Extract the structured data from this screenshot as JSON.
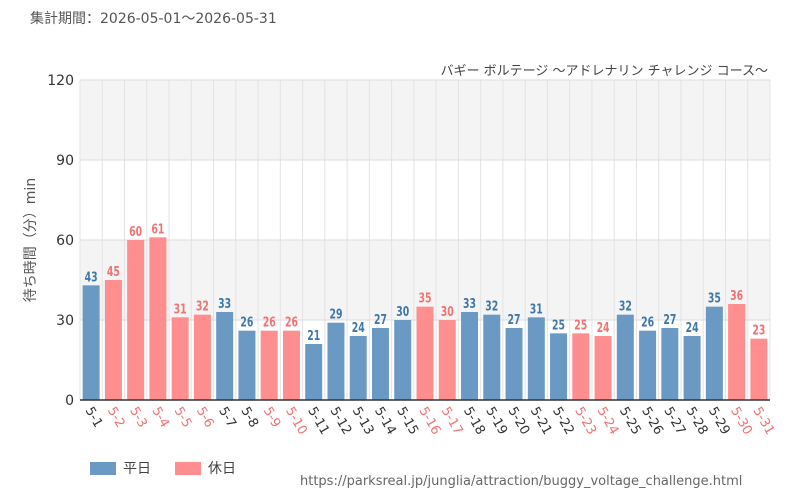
{
  "period_text": "集計期間：2026-05-01～2026-05-31",
  "url_text": "https://parksreal.jp/junglia/attraction/buggy_voltage_challenge.html",
  "colors": {
    "weekday": "#6a9ac4",
    "holiday": "#ff8e8e",
    "weekday_label": "#3f78a8",
    "holiday_label": "#f17272",
    "band": "#f4f4f4",
    "grid": "#e3e3e3"
  },
  "legend": [
    {
      "key": "weekday",
      "label": "平日"
    },
    {
      "key": "holiday",
      "label": "休日"
    }
  ],
  "chart_data": {
    "type": "bar",
    "title": "バギー ボルテージ ～アドレナリン チャレンジ コース～",
    "ylabel": "待ち時間（分）min",
    "xlabel": "",
    "ylim": [
      0,
      120
    ],
    "yticks": [
      0,
      30,
      60,
      90,
      120
    ],
    "grid": true,
    "legend_position": "bottom-left",
    "categories": [
      "5-1",
      "5-2",
      "5-3",
      "5-4",
      "5-5",
      "5-6",
      "5-7",
      "5-8",
      "5-9",
      "5-10",
      "5-11",
      "5-12",
      "5-13",
      "5-14",
      "5-15",
      "5-16",
      "5-17",
      "5-18",
      "5-19",
      "5-20",
      "5-21",
      "5-22",
      "5-23",
      "5-24",
      "5-25",
      "5-26",
      "5-27",
      "5-28",
      "5-29",
      "5-30",
      "5-31"
    ],
    "values": [
      43,
      45,
      60,
      61,
      31,
      32,
      33,
      26,
      26,
      26,
      21,
      29,
      24,
      27,
      30,
      35,
      30,
      33,
      32,
      27,
      31,
      25,
      25,
      24,
      32,
      26,
      27,
      24,
      35,
      36,
      23
    ],
    "day_type": [
      "weekday",
      "holiday",
      "holiday",
      "holiday",
      "holiday",
      "holiday",
      "weekday",
      "weekday",
      "holiday",
      "holiday",
      "weekday",
      "weekday",
      "weekday",
      "weekday",
      "weekday",
      "holiday",
      "holiday",
      "weekday",
      "weekday",
      "weekday",
      "weekday",
      "weekday",
      "holiday",
      "holiday",
      "weekday",
      "weekday",
      "weekday",
      "weekday",
      "weekday",
      "holiday",
      "holiday"
    ]
  }
}
